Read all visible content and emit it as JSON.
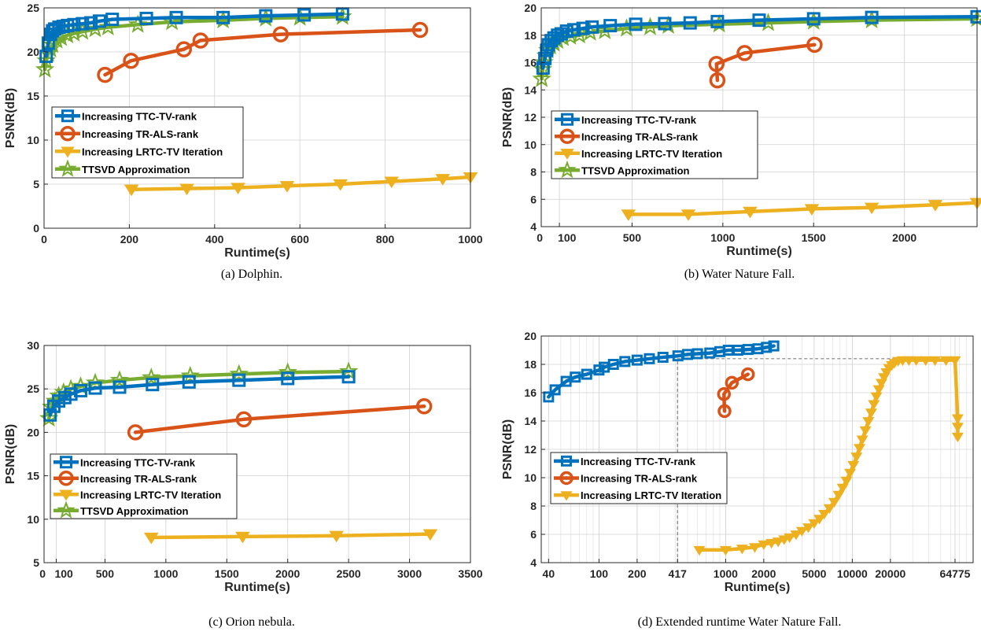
{
  "chart_data": [
    {
      "type": "line",
      "caption": "(a) Dolphin.",
      "xlabel": "Runtime(s)",
      "ylabel": "PSNR(dB)",
      "xscale": "linear",
      "xlim": [
        0,
        1000
      ],
      "ylim": [
        0,
        25
      ],
      "xticks": [
        0,
        200,
        400,
        600,
        800,
        1000
      ],
      "xtick_labels": [
        "0",
        "200",
        "400",
        "600",
        "800",
        "1000"
      ],
      "yticks": [
        0,
        5,
        10,
        15,
        20,
        25
      ],
      "ytick_labels": [
        "0",
        "5",
        "10",
        "15",
        "20",
        "25"
      ],
      "grid": true,
      "minor_grid": false,
      "legend": "middle-left",
      "series": [
        {
          "name": "Increasing TTC-TV-rank",
          "color": "#0072BD",
          "marker": "square",
          "x": [
            5,
            10,
            15,
            20,
            25,
            35,
            45,
            55,
            70,
            90,
            110,
            130,
            160,
            240,
            310,
            420,
            520,
            610,
            700
          ],
          "y": [
            19.5,
            21.0,
            22.0,
            22.4,
            22.6,
            22.8,
            22.9,
            23.0,
            23.1,
            23.2,
            23.3,
            23.5,
            23.7,
            23.8,
            23.9,
            23.9,
            24.1,
            24.2,
            24.3
          ]
        },
        {
          "name": "Increasing TR-ALS-rank",
          "color": "#D95319",
          "marker": "circle",
          "x": [
            143,
            204,
            328,
            367,
            555,
            882
          ],
          "y": [
            17.4,
            19.0,
            20.3,
            21.3,
            22.0,
            22.5
          ]
        },
        {
          "name": "Increasing LRTC-TV Iteration",
          "color": "#EDB120",
          "marker": "triangle-down",
          "x": [
            205,
            335,
            455,
            570,
            695,
            815,
            935,
            1000
          ],
          "y": [
            4.4,
            4.5,
            4.6,
            4.8,
            5.0,
            5.3,
            5.6,
            5.8
          ]
        },
        {
          "name": "TTSVD Approximation",
          "color": "#77AC30",
          "marker": "star",
          "x": [
            2,
            5,
            10,
            15,
            20,
            30,
            40,
            55,
            70,
            90,
            120,
            150,
            220,
            300,
            420,
            520,
            600,
            700
          ],
          "y": [
            18.0,
            19.0,
            19.8,
            20.3,
            20.8,
            21.3,
            21.6,
            21.9,
            22.1,
            22.3,
            22.6,
            22.8,
            23.1,
            23.4,
            23.6,
            23.8,
            23.9,
            24.0
          ]
        }
      ]
    },
    {
      "type": "line",
      "caption": "(b) Water Nature Fall.",
      "xlabel": "Runtime(s)",
      "ylabel": "PSNR(dB)",
      "xscale": "linear",
      "xlim": [
        0,
        2400
      ],
      "ylim": [
        4,
        20
      ],
      "xticks": [
        0,
        100,
        500,
        1000,
        1500,
        2000
      ],
      "xtick_labels": [
        "0",
        "100",
        "500",
        "1000",
        "1500",
        "2000"
      ],
      "yticks": [
        4,
        6,
        8,
        10,
        12,
        14,
        16,
        18,
        20
      ],
      "ytick_labels": [
        "4",
        "6",
        "8",
        "10",
        "12",
        "14",
        "16",
        "18",
        "20"
      ],
      "grid": true,
      "minor_grid": false,
      "legend": "middle-left",
      "series": [
        {
          "name": "Increasing TTC-TV-rank",
          "color": "#0072BD",
          "marker": "square",
          "x": [
            10,
            20,
            30,
            40,
            55,
            70,
            90,
            110,
            140,
            180,
            230,
            280,
            380,
            520,
            680,
            820,
            970,
            1200,
            1500,
            1820,
            2400
          ],
          "y": [
            15.6,
            16.3,
            16.9,
            17.3,
            17.6,
            17.8,
            18.0,
            18.1,
            18.3,
            18.4,
            18.5,
            18.6,
            18.7,
            18.8,
            18.85,
            18.9,
            19.0,
            19.1,
            19.2,
            19.3,
            19.35
          ]
        },
        {
          "name": "Increasing TR-ALS-rank",
          "color": "#D95319",
          "marker": "circle",
          "x": [
            970,
            965,
            1120,
            1505
          ],
          "y": [
            14.7,
            15.9,
            16.7,
            17.3
          ]
        },
        {
          "name": "Increasing LRTC-TV Iteration",
          "color": "#EDB120",
          "marker": "triangle-down",
          "x": [
            480,
            810,
            1150,
            1490,
            1820,
            2170,
            2400
          ],
          "y": [
            4.9,
            4.9,
            5.1,
            5.3,
            5.4,
            5.6,
            5.75
          ]
        },
        {
          "name": "TTSVD Approximation",
          "color": "#77AC30",
          "marker": "star",
          "x": [
            3,
            8,
            15,
            25,
            35,
            50,
            70,
            90,
            120,
            160,
            210,
            270,
            350,
            470,
            600,
            700,
            980,
            1250,
            1500,
            1820,
            2400
          ],
          "y": [
            14.8,
            15.5,
            16.0,
            16.5,
            16.9,
            17.2,
            17.4,
            17.6,
            17.8,
            17.9,
            18.0,
            18.2,
            18.3,
            18.5,
            18.6,
            18.7,
            18.8,
            18.9,
            19.0,
            19.1,
            19.2
          ]
        }
      ]
    },
    {
      "type": "line",
      "caption": "(c) Orion nebula.",
      "xlabel": "Runtime(s)",
      "ylabel": "PSNR(dB)",
      "xscale": "linear",
      "xlim": [
        0,
        3500
      ],
      "ylim": [
        5,
        30
      ],
      "xticks": [
        0,
        100,
        500,
        1000,
        1500,
        2000,
        2500,
        3000,
        3500
      ],
      "xtick_labels": [
        "0",
        "100",
        "500",
        "1000",
        "1500",
        "2000",
        "2500",
        "3000",
        "3500"
      ],
      "yticks": [
        5,
        10,
        15,
        20,
        25,
        30
      ],
      "ytick_labels": [
        "5",
        "10",
        "15",
        "20",
        "25",
        "30"
      ],
      "grid": true,
      "minor_grid": false,
      "legend": "lower-left",
      "series": [
        {
          "name": "Increasing TTC-TV-rank",
          "color": "#0072BD",
          "marker": "square",
          "x": [
            50,
            80,
            120,
            170,
            220,
            300,
            420,
            620,
            890,
            1190,
            1600,
            2000,
            2500
          ],
          "y": [
            22.0,
            23.0,
            23.6,
            24.0,
            24.4,
            24.8,
            25.1,
            25.2,
            25.5,
            25.8,
            26.0,
            26.2,
            26.4
          ]
        },
        {
          "name": "Increasing TR-ALS-rank",
          "color": "#D95319",
          "marker": "circle",
          "x": [
            750,
            1640,
            3120
          ],
          "y": [
            20.0,
            21.5,
            23.0
          ]
        },
        {
          "name": "Increasing LRTC-TV Iteration",
          "color": "#EDB120",
          "marker": "triangle-down",
          "x": [
            880,
            1630,
            2400,
            3170
          ],
          "y": [
            7.9,
            8.0,
            8.1,
            8.3
          ]
        },
        {
          "name": "TTSVD Approximation",
          "color": "#77AC30",
          "marker": "star",
          "x": [
            40,
            60,
            90,
            120,
            160,
            220,
            300,
            420,
            620,
            880,
            1200,
            1600,
            2000,
            2500
          ],
          "y": [
            21.6,
            22.9,
            23.6,
            24.2,
            24.6,
            25.0,
            25.3,
            25.7,
            26.0,
            26.3,
            26.5,
            26.7,
            26.9,
            27.0
          ]
        }
      ]
    },
    {
      "type": "line",
      "caption": "(d) Extended runtime Water Nature Fall.",
      "xlabel": "Runtime(s)",
      "ylabel": "PSNR(dB)",
      "xscale": "log",
      "xlim": [
        35,
        90000
      ],
      "ylim": [
        4,
        20
      ],
      "xticks": [
        40,
        100,
        200,
        417,
        1000,
        2000,
        5000,
        10000,
        20000,
        64775
      ],
      "xtick_labels": [
        "40",
        "100",
        "200",
        "417",
        "1000",
        "2000",
        "5000",
        "10000",
        "20000",
        "64775"
      ],
      "yticks": [
        4,
        6,
        8,
        10,
        12,
        14,
        16,
        18,
        20
      ],
      "ytick_labels": [
        "4",
        "6",
        "8",
        "10",
        "12",
        "14",
        "16",
        "18",
        "20"
      ],
      "grid": true,
      "minor_grid": true,
      "legend": "middle-left",
      "reference_lines": {
        "x": 417,
        "y": 18.4
      },
      "series": [
        {
          "name": "Increasing TTC-TV-rank",
          "color": "#0072BD",
          "marker": "square",
          "x": [
            40,
            45,
            55,
            65,
            80,
            100,
            110,
            130,
            160,
            200,
            250,
            320,
            420,
            500,
            600,
            750,
            900,
            1050,
            1250,
            1500,
            1800,
            2100,
            2400
          ],
          "y": [
            15.7,
            16.2,
            16.8,
            17.1,
            17.3,
            17.6,
            17.8,
            18.0,
            18.2,
            18.3,
            18.4,
            18.5,
            18.6,
            18.7,
            18.75,
            18.8,
            18.9,
            19.0,
            19.0,
            19.05,
            19.1,
            19.2,
            19.3
          ]
        },
        {
          "name": "Increasing TR-ALS-rank",
          "color": "#D95319",
          "marker": "circle",
          "x": [
            980,
            970,
            1120,
            1500
          ],
          "y": [
            14.7,
            15.9,
            16.7,
            17.3
          ]
        },
        {
          "name": "Increasing LRTC-TV Iteration",
          "color": "#EDB120",
          "marker": "triangle-down",
          "x": [
            620,
            1000,
            1350,
            1700,
            2000,
            2300,
            2600,
            2900,
            3200,
            3600,
            4000,
            4500,
            5000,
            5500,
            6000,
            6600,
            7200,
            7800,
            8400,
            9000,
            9600,
            10200,
            10800,
            11400,
            12000,
            12700,
            13400,
            14100,
            14800,
            15500,
            16200,
            17000,
            17800,
            18600,
            19500,
            20500,
            21500,
            23000,
            25000,
            28000,
            32000,
            38000,
            45000,
            55000,
            64775,
            68000,
            68000,
            68000
          ],
          "y": [
            4.9,
            4.9,
            5.0,
            5.1,
            5.3,
            5.4,
            5.5,
            5.65,
            5.8,
            6.0,
            6.25,
            6.5,
            6.8,
            7.1,
            7.45,
            7.85,
            8.3,
            8.8,
            9.3,
            9.8,
            10.35,
            10.9,
            11.5,
            12.1,
            12.7,
            13.35,
            14.0,
            14.6,
            15.2,
            15.75,
            16.25,
            16.7,
            17.1,
            17.45,
            17.75,
            17.95,
            18.1,
            18.25,
            18.3,
            18.3,
            18.3,
            18.3,
            18.3,
            18.3,
            18.3,
            14.2,
            13.6,
            12.9
          ]
        }
      ]
    }
  ]
}
